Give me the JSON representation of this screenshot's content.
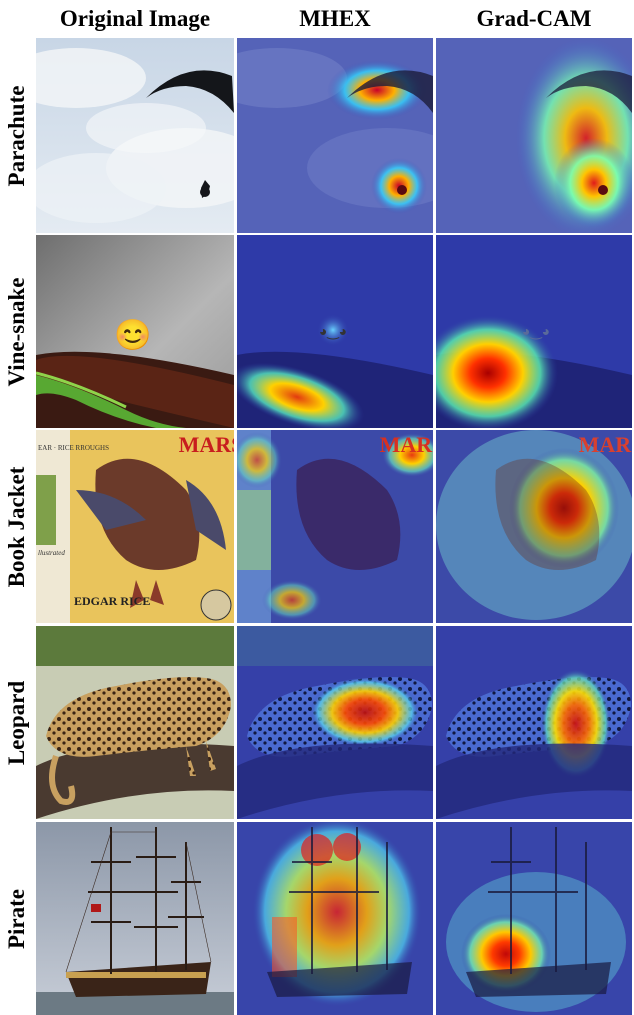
{
  "columns": [
    "Original Image",
    "MHEX",
    "Grad-CAM"
  ],
  "rows": [
    {
      "label": "Parachute"
    },
    {
      "label": "Vine-snake"
    },
    {
      "label": "Book Jacket"
    },
    {
      "label": "Leopard"
    },
    {
      "label": "Pirate"
    }
  ],
  "book_cover_text": {
    "title": "MARS",
    "author_top": "EAR · RICE\nRROUGHS",
    "illustrated": "llustrated",
    "author_bottom": "EDGAR\nRICE"
  },
  "emoji": "😊"
}
